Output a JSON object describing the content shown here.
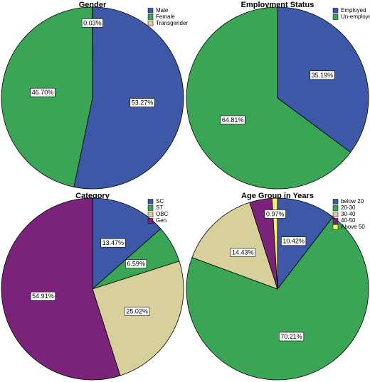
{
  "chart_data": [
    {
      "type": "pie",
      "title": "Gender",
      "categories": [
        "Male",
        "Female",
        "Transgender"
      ],
      "values": [
        53.27,
        46.7,
        0.03
      ],
      "value_labels": [
        "53.27%",
        "46.70%",
        "0.03%"
      ],
      "colors": [
        "#3e58a8",
        "#3aa655",
        "#d8d09b"
      ]
    },
    {
      "type": "pie",
      "title": "Employment Status",
      "categories": [
        "Employed",
        "Un-employed"
      ],
      "values": [
        35.19,
        64.81
      ],
      "value_labels": [
        "35.19%",
        "64.81%"
      ],
      "colors": [
        "#3e58a8",
        "#3aa655"
      ]
    },
    {
      "type": "pie",
      "title": "Category",
      "categories": [
        "SC",
        "ST",
        "OBC",
        "Gen"
      ],
      "values": [
        13.47,
        6.59,
        25.02,
        54.91
      ],
      "value_labels": [
        "13.47%",
        "6.59%",
        "25.02%",
        "54.91%"
      ],
      "colors": [
        "#3e58a8",
        "#3aa655",
        "#d8d09b",
        "#7b237a"
      ]
    },
    {
      "type": "pie",
      "title": "Age Group in Years",
      "categories": [
        "below 20",
        "20-30",
        "30-40",
        "40-50",
        "Above 50"
      ],
      "values": [
        10.42,
        70.21,
        14.43,
        3.97,
        0.97
      ],
      "value_labels": [
        "10.42%",
        "70.21%",
        "14.43%",
        null,
        "0.97%"
      ],
      "colors": [
        "#3e58a8",
        "#3aa655",
        "#d8d09b",
        "#7b237a",
        "#f7f26a"
      ]
    }
  ]
}
